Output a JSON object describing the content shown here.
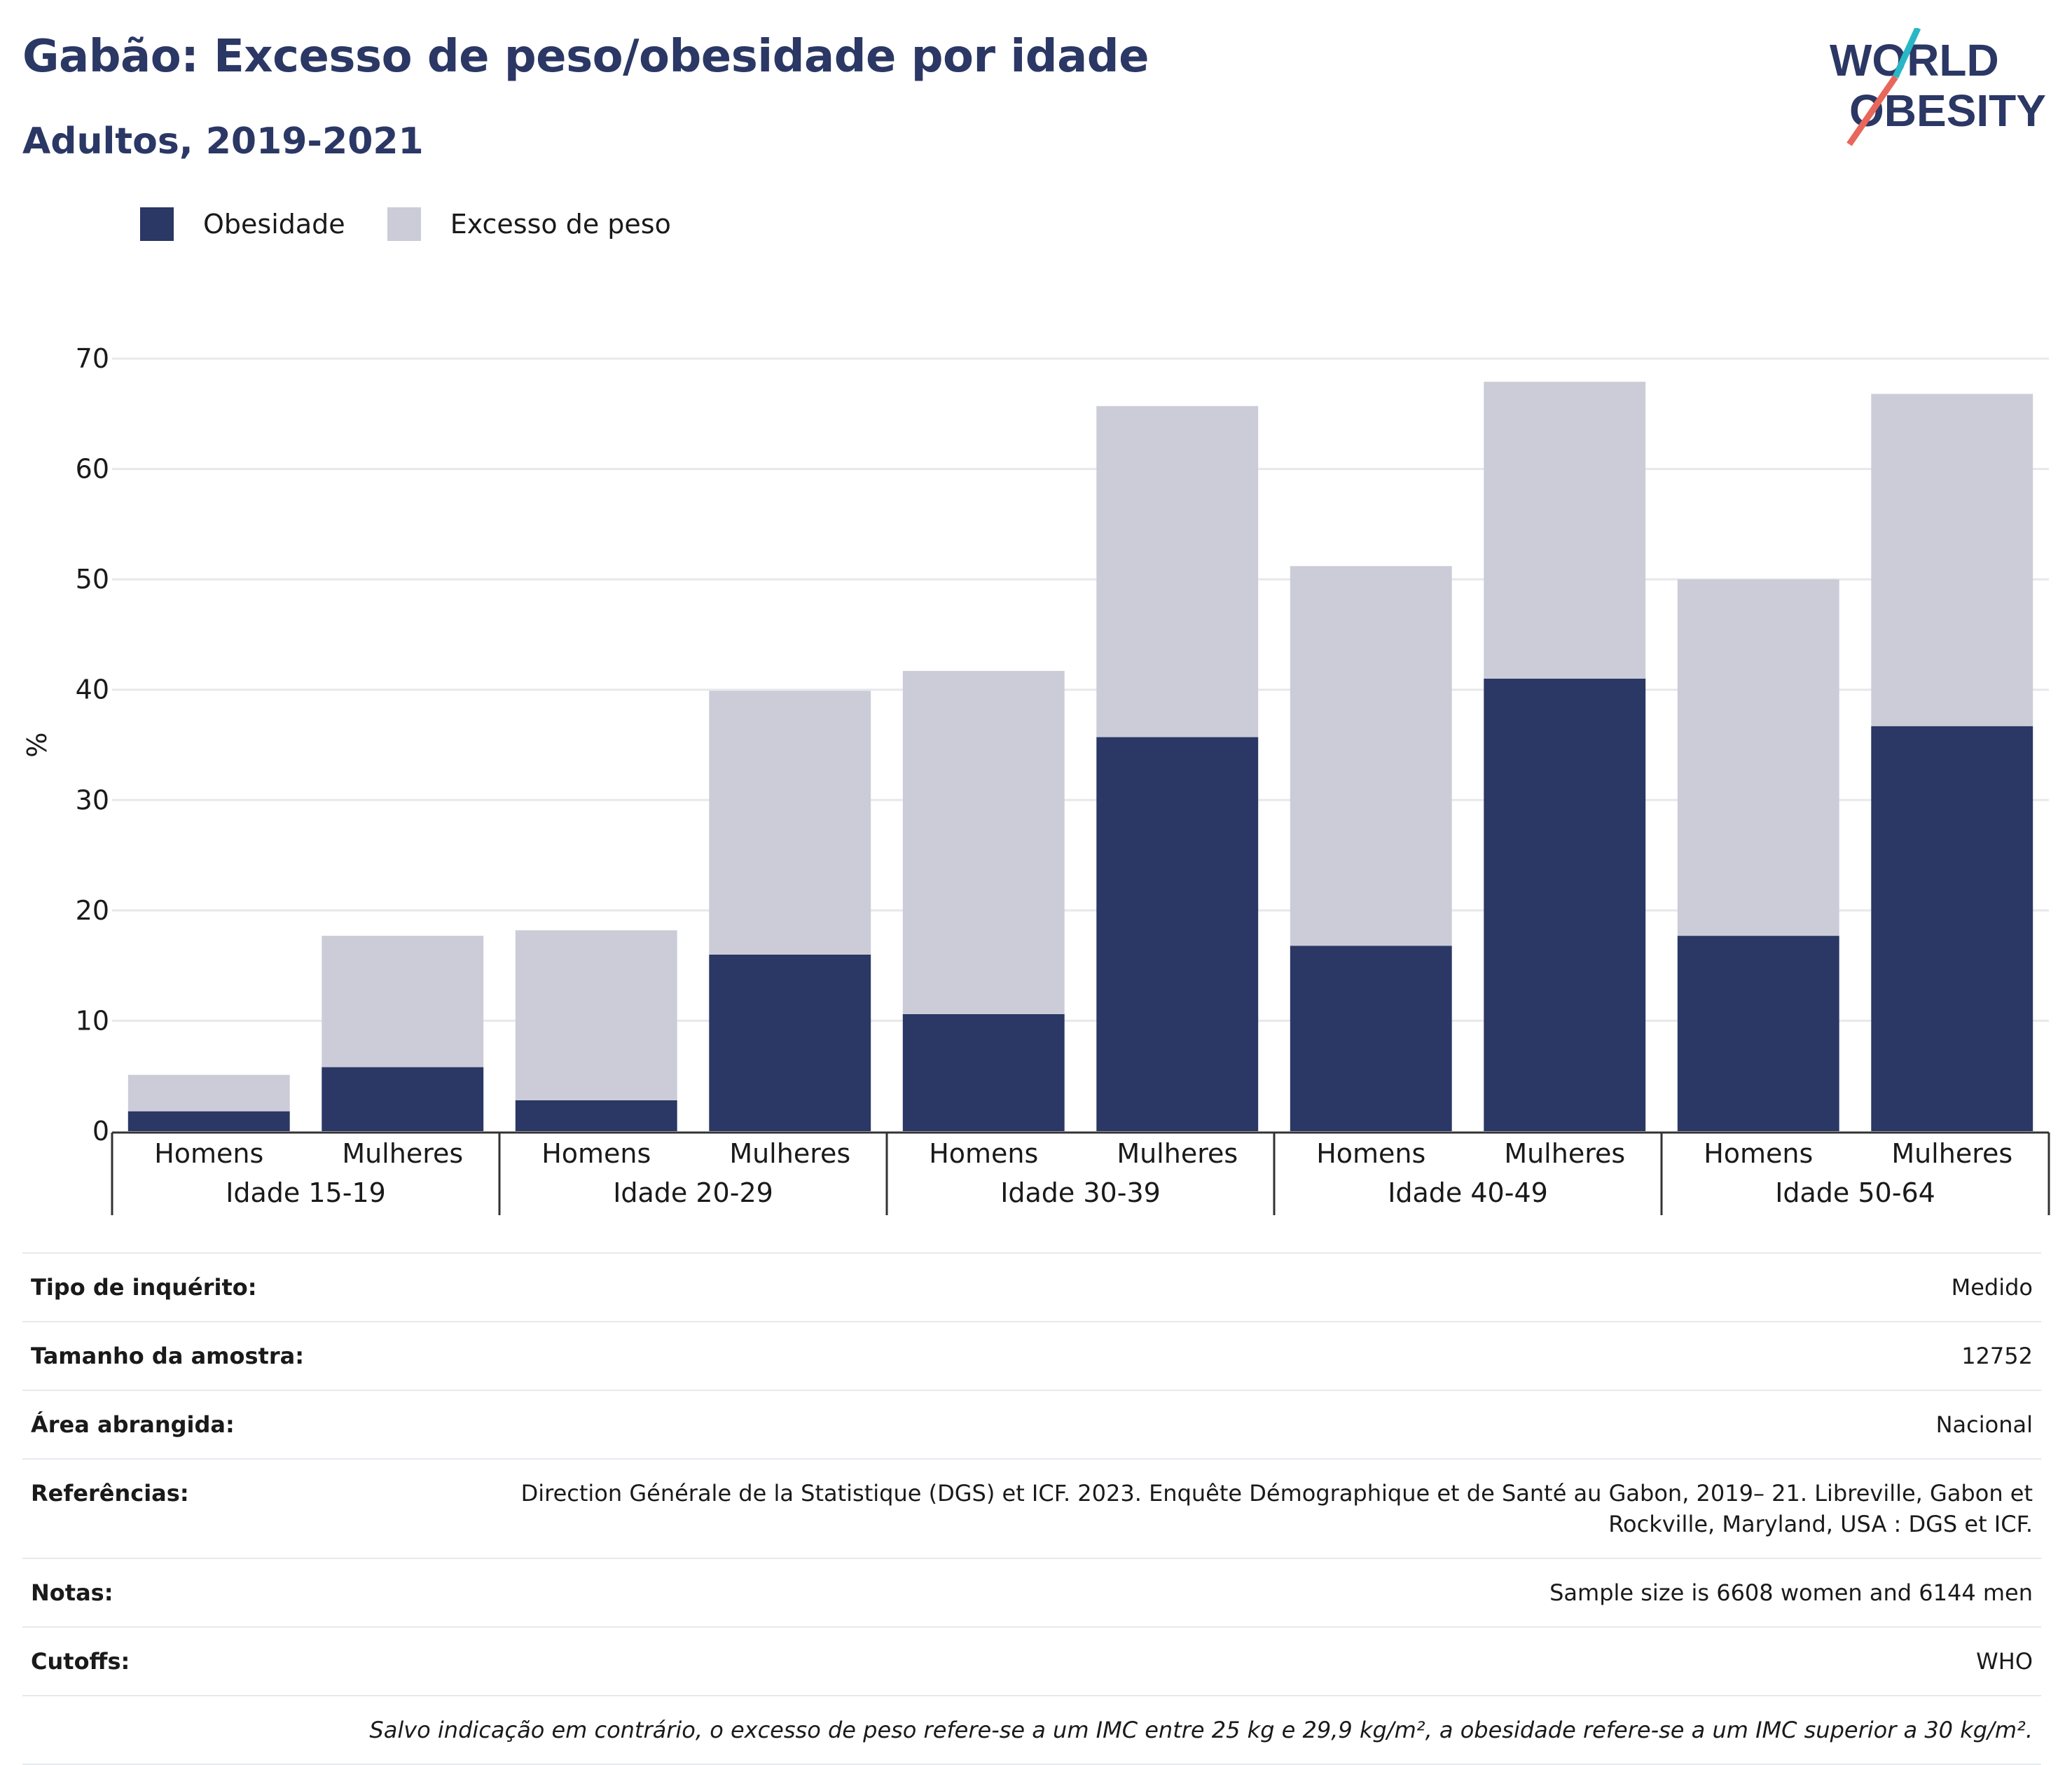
{
  "header": {
    "title": "Gabão: Excesso de peso/obesidade por idade",
    "subtitle": "Adultos, 2019-2021"
  },
  "logo": {
    "line1": "WORLD",
    "line2": "OBESITY"
  },
  "colors": {
    "obesity": "#2b3764",
    "overweight": "#cbccd8",
    "brand_teal": "#2ab7c5",
    "brand_coral": "#e8675a"
  },
  "chart_data": {
    "type": "bar",
    "stacked": true,
    "ylabel": "%",
    "ylim": [
      0,
      70
    ],
    "yticks": [
      0,
      10,
      20,
      30,
      40,
      50,
      60,
      70
    ],
    "grid": true,
    "legend_position": "top-left",
    "groups": [
      "Idade 15-19",
      "Idade 20-29",
      "Idade 30-39",
      "Idade 40-49",
      "Idade 50-64"
    ],
    "subcategories": [
      "Homens",
      "Mulheres"
    ],
    "series": [
      {
        "name": "Obesidade",
        "values": [
          1.8,
          5.8,
          2.8,
          16.0,
          10.6,
          35.7,
          16.8,
          41.0,
          17.7,
          36.7
        ]
      },
      {
        "name": "Excesso de peso",
        "values": [
          3.3,
          11.9,
          15.4,
          23.9,
          31.1,
          30.0,
          34.4,
          26.9,
          32.3,
          30.1
        ]
      }
    ]
  },
  "info_table": [
    {
      "label": "Tipo de inquérito:",
      "value": "Medido"
    },
    {
      "label": "Tamanho da amostra:",
      "value": "12752"
    },
    {
      "label": "Área abrangida:",
      "value": "Nacional"
    },
    {
      "label": "Referências:",
      "value": "Direction Générale de la Statistique (DGS) et ICF. 2023. Enquête Démographique et de Santé au Gabon, 2019– 21. Libreville, Gabon et Rockville, Maryland, USA : DGS et ICF."
    },
    {
      "label": "Notas:",
      "value": "Sample size is 6608 women and 6144 men"
    },
    {
      "label": "Cutoffs:",
      "value": "WHO"
    }
  ],
  "footnote": "Salvo indicação em contrário, o excesso de peso refere-se a um IMC entre 25 kg e 29,9 kg/m², a obesidade refere-se a um IMC superior a 30 kg/m²."
}
